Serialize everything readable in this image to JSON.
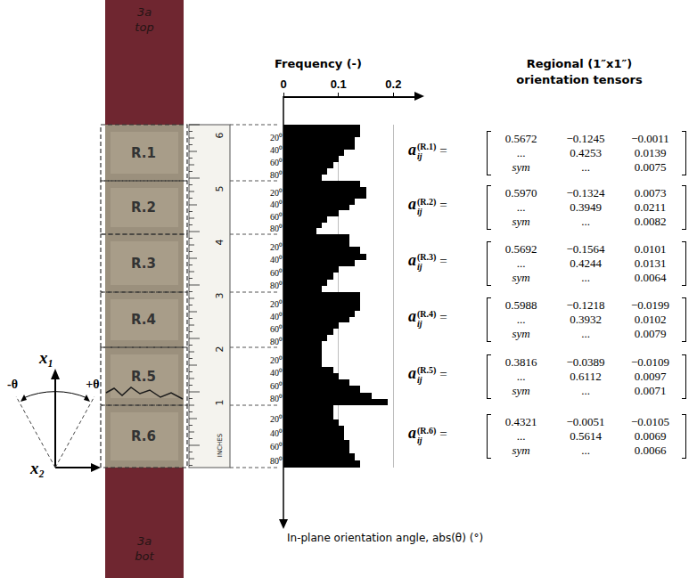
{
  "chart_data": {
    "type": "bar",
    "orientation": "horizontal",
    "title": "Frequency (-)",
    "y_label": "In-plane orientation angle, abs(θ) (°)",
    "xlim": [
      0,
      0.24
    ],
    "xticks": [
      0,
      0.1,
      0.2
    ],
    "ylim": [
      0,
      90
    ],
    "yticks": [
      {
        "value": 20,
        "label": "20⁰"
      },
      {
        "value": 40,
        "label": "40⁰"
      },
      {
        "value": 60,
        "label": "60⁰"
      },
      {
        "value": 80,
        "label": "80⁰"
      }
    ],
    "grid": true,
    "color": "#000000",
    "bins": [
      0,
      10,
      20,
      30,
      40,
      50,
      60,
      70,
      80,
      90
    ],
    "series": [
      {
        "name": "R.1",
        "values": [
          0.14,
          0.14,
          0.13,
          0.13,
          0.11,
          0.1,
          0.09,
          0.08,
          0.07
        ]
      },
      {
        "name": "R.2",
        "values": [
          0.14,
          0.15,
          0.15,
          0.13,
          0.12,
          0.1,
          0.08,
          0.07,
          0.06
        ]
      },
      {
        "name": "R.3",
        "values": [
          0.12,
          0.12,
          0.14,
          0.15,
          0.13,
          0.1,
          0.09,
          0.08,
          0.07
        ]
      },
      {
        "name": "R.4",
        "values": [
          0.14,
          0.14,
          0.14,
          0.13,
          0.12,
          0.1,
          0.09,
          0.08,
          0.07
        ]
      },
      {
        "name": "R.5",
        "values": [
          0.07,
          0.07,
          0.07,
          0.09,
          0.1,
          0.12,
          0.14,
          0.16,
          0.19
        ]
      },
      {
        "name": "R.6",
        "values": [
          0.09,
          0.09,
          0.1,
          0.11,
          0.11,
          0.12,
          0.12,
          0.13,
          0.14
        ]
      }
    ]
  },
  "specimen": {
    "top_label": [
      "3a",
      "top"
    ],
    "bottom_label": [
      "3a",
      "bot"
    ]
  },
  "ruler": {
    "numbers": [
      "6",
      "5",
      "4",
      "3",
      "2",
      "1"
    ],
    "unit": "INCHES"
  },
  "axes_sketch": {
    "x1": "x₁",
    "x2": "x₂",
    "minus": "-θ",
    "plus": "+θ"
  },
  "tensors": {
    "title": [
      "Regional (1″x1″)",
      "orientation tensors"
    ],
    "symbol": "a",
    "subscript": "ij",
    "relation": "=",
    "items": [
      {
        "label": "(R.1)",
        "rows": [
          [
            "0.5672",
            "−0.1245",
            "−0.0011"
          ],
          [
            "...",
            "0.4253",
            "0.0139"
          ],
          [
            "sym",
            "...",
            "0.0075"
          ]
        ]
      },
      {
        "label": "(R.2)",
        "rows": [
          [
            "0.5970",
            "−0.1324",
            "0.0073"
          ],
          [
            "...",
            "0.3949",
            "0.0211"
          ],
          [
            "sym",
            "...",
            "0.0082"
          ]
        ]
      },
      {
        "label": "(R.3)",
        "rows": [
          [
            "0.5692",
            "−0.1564",
            "0.0101"
          ],
          [
            "...",
            "0.4244",
            "0.0131"
          ],
          [
            "sym",
            "...",
            "0.0064"
          ]
        ]
      },
      {
        "label": "(R.4)",
        "rows": [
          [
            "0.5988",
            "−0.1218",
            "−0.0199"
          ],
          [
            "...",
            "0.3932",
            "0.0102"
          ],
          [
            "sym",
            "...",
            "0.0079"
          ]
        ]
      },
      {
        "label": "(R.5)",
        "rows": [
          [
            "0.3816",
            "−0.0389",
            "−0.0109"
          ],
          [
            "...",
            "0.6112",
            "0.0097"
          ],
          [
            "sym",
            "...",
            "0.0071"
          ]
        ]
      },
      {
        "label": "(R.6)",
        "rows": [
          [
            "0.4321",
            "−0.0051",
            "−0.0105"
          ],
          [
            "...",
            "0.5614",
            "0.0069"
          ],
          [
            "sym",
            "...",
            "0.0066"
          ]
        ]
      }
    ]
  }
}
